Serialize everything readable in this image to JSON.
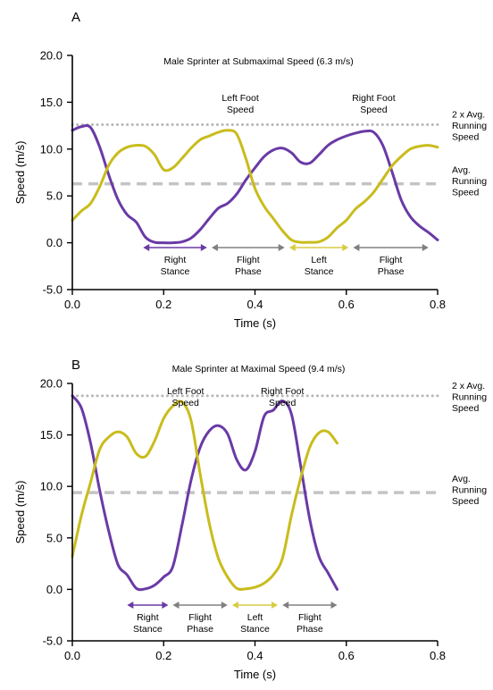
{
  "chart_data": [
    {
      "type": "line",
      "panel_label": "A",
      "title": "Male Sprinter at Submaximal Speed (6.3 m/s)",
      "xlabel": "Time (s)",
      "ylabel": "Speed (m/s)",
      "xlim": [
        0,
        0.8
      ],
      "ylim": [
        -5,
        20
      ],
      "xticks": [
        0,
        0.2,
        0.4,
        0.6,
        0.8
      ],
      "xtick_labels": [
        "0.0",
        "0.2",
        "0.4",
        "0.6",
        "0.8"
      ],
      "yticks": [
        -5,
        0,
        5,
        10,
        15,
        20
      ],
      "ytick_labels": [
        "-5.0",
        "0.0",
        "5.0",
        "10.0",
        "15.0",
        "20.0"
      ],
      "grid": false,
      "series": [
        {
          "name": "Right Foot Speed",
          "color": "#6a3aa6",
          "x": [
            0,
            0.02,
            0.04,
            0.06,
            0.08,
            0.1,
            0.12,
            0.14,
            0.16,
            0.18,
            0.2,
            0.22,
            0.24,
            0.26,
            0.28,
            0.3,
            0.32,
            0.34,
            0.36,
            0.38,
            0.4,
            0.42,
            0.44,
            0.46,
            0.48,
            0.5,
            0.52,
            0.54,
            0.56,
            0.58,
            0.6,
            0.62,
            0.64,
            0.66,
            0.68,
            0.7,
            0.72,
            0.74,
            0.76,
            0.78,
            0.8
          ],
          "y": [
            12.0,
            12.4,
            12.3,
            10.2,
            7.2,
            4.6,
            3.0,
            2.2,
            0.6,
            0.05,
            0.0,
            0.0,
            0.1,
            0.5,
            1.4,
            2.6,
            3.7,
            4.2,
            5.2,
            6.7,
            8.0,
            9.2,
            9.9,
            10.1,
            9.6,
            8.6,
            8.5,
            9.4,
            10.4,
            11.0,
            11.4,
            11.7,
            11.9,
            11.8,
            10.4,
            7.6,
            4.6,
            2.8,
            1.8,
            1.1,
            0.3
          ]
        },
        {
          "name": "Left Foot Speed",
          "color": "#c9bc1c",
          "x": [
            0,
            0.02,
            0.04,
            0.06,
            0.08,
            0.1,
            0.12,
            0.14,
            0.16,
            0.18,
            0.2,
            0.22,
            0.24,
            0.26,
            0.28,
            0.3,
            0.32,
            0.34,
            0.36,
            0.38,
            0.4,
            0.42,
            0.44,
            0.46,
            0.48,
            0.5,
            0.52,
            0.54,
            0.56,
            0.58,
            0.6,
            0.62,
            0.64,
            0.66,
            0.68,
            0.7,
            0.72,
            0.74,
            0.76,
            0.78,
            0.8
          ],
          "y": [
            2.4,
            3.4,
            4.2,
            6.0,
            8.3,
            9.6,
            10.2,
            10.4,
            10.3,
            9.4,
            7.8,
            8.0,
            9.0,
            10.1,
            11.0,
            11.4,
            11.8,
            12.0,
            11.6,
            9.0,
            5.8,
            3.9,
            2.6,
            1.3,
            0.3,
            0.05,
            0.05,
            0.1,
            0.6,
            1.6,
            2.4,
            3.6,
            4.4,
            5.4,
            6.8,
            8.2,
            9.2,
            10.0,
            10.3,
            10.4,
            10.2
          ]
        }
      ],
      "reference_lines": [
        {
          "label": "2 x Avg. Running Speed",
          "value": 12.6,
          "style": "dotted",
          "color": "#b8b8b8"
        },
        {
          "label": "Avg. Running Speed",
          "value": 6.3,
          "style": "dashed",
          "color": "#c4c4c4"
        }
      ],
      "curve_labels": [
        {
          "text": "Left Foot Speed",
          "x": 0.36
        },
        {
          "text": "Right Foot Speed",
          "x": 0.66
        }
      ],
      "phases": [
        {
          "label": "Right Stance",
          "start": 0.155,
          "end": 0.295,
          "color": "#6a3aa6"
        },
        {
          "label": "Flight Phase",
          "start": 0.305,
          "end": 0.465,
          "color": "#808080"
        },
        {
          "label": "Left Stance",
          "start": 0.475,
          "end": 0.605,
          "color": "#d8cc44"
        },
        {
          "label": "Flight Phase",
          "start": 0.615,
          "end": 0.78,
          "color": "#808080"
        }
      ]
    },
    {
      "type": "line",
      "panel_label": "B",
      "title": "Male Sprinter at Maximal Speed (9.4 m/s)",
      "xlabel": "Time (s)",
      "ylabel": "Speed (m/s)",
      "xlim": [
        0,
        0.8
      ],
      "ylim": [
        -5,
        20
      ],
      "xticks": [
        0,
        0.2,
        0.4,
        0.6,
        0.8
      ],
      "xtick_labels": [
        "0.0",
        "0.2",
        "0.4",
        "0.6",
        "0.8"
      ],
      "yticks": [
        -5,
        0,
        5,
        10,
        15,
        20
      ],
      "ytick_labels": [
        "-5.0",
        "0.0",
        "5.0",
        "10.0",
        "15.0",
        "20.0"
      ],
      "grid": false,
      "series": [
        {
          "name": "Right Foot Speed",
          "color": "#6a3aa6",
          "x": [
            0,
            0.02,
            0.04,
            0.06,
            0.08,
            0.1,
            0.12,
            0.14,
            0.16,
            0.18,
            0.2,
            0.22,
            0.24,
            0.26,
            0.28,
            0.3,
            0.32,
            0.34,
            0.36,
            0.38,
            0.4,
            0.42,
            0.44,
            0.46,
            0.48,
            0.5,
            0.52,
            0.54,
            0.56,
            0.58
          ],
          "y": [
            18.8,
            17.6,
            14.2,
            9.6,
            5.6,
            2.4,
            1.4,
            0.1,
            0.05,
            0.4,
            1.2,
            2.2,
            6.2,
            10.6,
            13.8,
            15.4,
            15.9,
            15.1,
            12.6,
            11.6,
            13.4,
            16.8,
            17.4,
            18.3,
            17.0,
            12.0,
            6.8,
            3.2,
            1.6,
            0.0
          ]
        },
        {
          "name": "Left Foot Speed",
          "color": "#c9bc1c",
          "x": [
            0,
            0.02,
            0.04,
            0.06,
            0.08,
            0.1,
            0.12,
            0.14,
            0.16,
            0.18,
            0.2,
            0.22,
            0.24,
            0.26,
            0.28,
            0.3,
            0.32,
            0.34,
            0.36,
            0.38,
            0.4,
            0.42,
            0.44,
            0.46,
            0.48,
            0.5,
            0.52,
            0.54,
            0.56,
            0.58
          ],
          "y": [
            3.2,
            7.2,
            10.4,
            13.6,
            14.8,
            15.3,
            14.8,
            13.2,
            12.9,
            14.4,
            16.6,
            17.8,
            18.2,
            16.4,
            11.2,
            6.4,
            3.0,
            1.2,
            0.1,
            0.05,
            0.2,
            0.6,
            1.4,
            3.0,
            7.2,
            10.8,
            13.8,
            15.2,
            15.3,
            14.2
          ]
        }
      ],
      "reference_lines": [
        {
          "label": "2 x Avg. Running Speed",
          "value": 18.8,
          "style": "dotted",
          "color": "#b8b8b8"
        },
        {
          "label": "Avg. Running Speed",
          "value": 9.4,
          "style": "dashed",
          "color": "#c4c4c4"
        }
      ],
      "curve_labels": [
        {
          "text": "Left Foot Speed",
          "x": 0.24
        },
        {
          "text": "Right Foot Speed",
          "x": 0.46
        }
      ],
      "phases": [
        {
          "label": "Right Stance",
          "start": 0.12,
          "end": 0.21,
          "color": "#6a3aa6"
        },
        {
          "label": "Flight Phase",
          "start": 0.22,
          "end": 0.34,
          "color": "#808080"
        },
        {
          "label": "Left Stance",
          "start": 0.35,
          "end": 0.45,
          "color": "#d8cc44"
        },
        {
          "label": "Flight Phase",
          "start": 0.46,
          "end": 0.58,
          "color": "#808080"
        }
      ]
    }
  ]
}
